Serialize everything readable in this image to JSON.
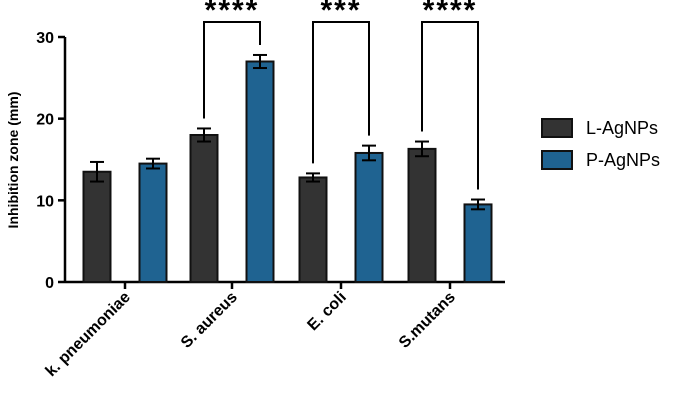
{
  "chart_data": {
    "type": "bar",
    "ylabel": "Inhibition zone (mm)",
    "ylim": [
      0,
      30
    ],
    "yticks": [
      "0",
      "10",
      "20",
      "30"
    ],
    "categories": [
      "k. pneumoniae",
      "S. aureus",
      "E. coli",
      "S.mutans"
    ],
    "series": [
      {
        "name": "L-AgNPs",
        "color": "#333333",
        "values": [
          13.5,
          18.0,
          12.8,
          16.3
        ],
        "errors": [
          1.2,
          0.8,
          0.5,
          0.9
        ]
      },
      {
        "name": "P-AgNPs",
        "color": "#1f6391",
        "values": [
          14.5,
          27.0,
          15.8,
          9.5
        ],
        "errors": [
          0.6,
          0.8,
          0.9,
          0.6
        ]
      }
    ],
    "significance": [
      "",
      "****",
      "***",
      "****"
    ],
    "legend_position": "right",
    "grid": false
  }
}
